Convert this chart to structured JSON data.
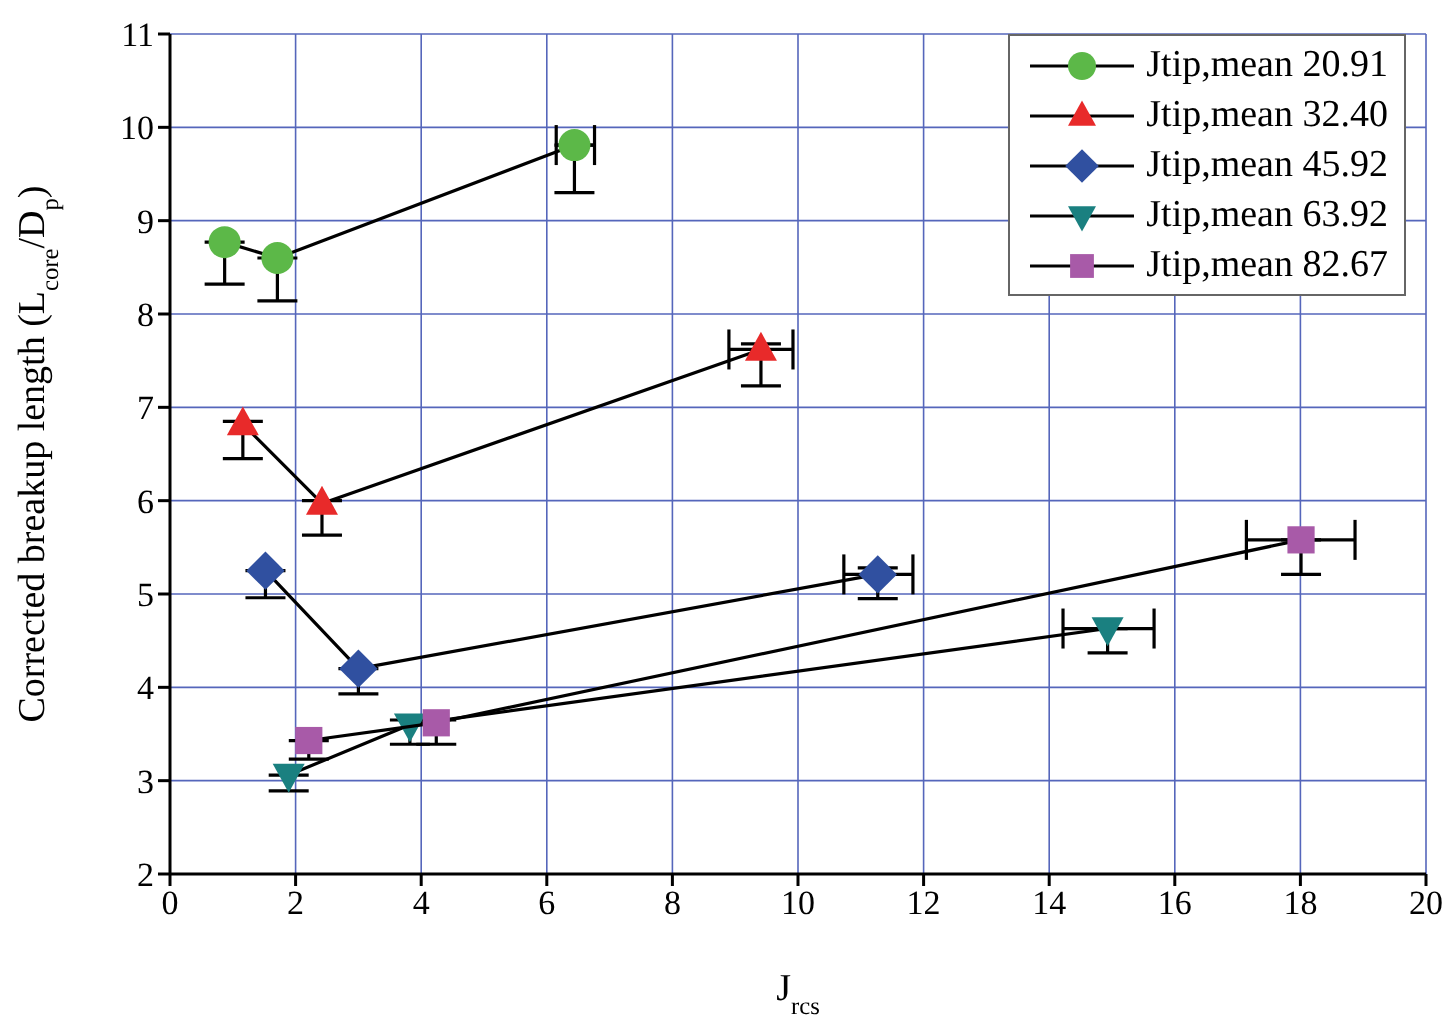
{
  "chart_data": {
    "type": "line",
    "xlabel": "J$_{rcs}$",
    "ylabel": "Corrected breakup length (L$_{core}$/D$_{p}$)",
    "xlim": [
      0,
      20
    ],
    "xticks": [
      0,
      2,
      4,
      6,
      8,
      10,
      12,
      14,
      16,
      18,
      20
    ],
    "ylim": [
      2,
      11
    ],
    "yticks": [
      2,
      3,
      4,
      5,
      6,
      7,
      8,
      9,
      10,
      11
    ],
    "grid": true,
    "legend": "top right",
    "line_style": "solid",
    "series": [
      {
        "name": "Jtip,mean 20.91",
        "color": "#5cb848",
        "marker": "circle",
        "x": [
          0.87,
          1.71,
          6.44
        ],
        "values": [
          8.77,
          8.6,
          9.81
        ],
        "errors": [
          [
            8.32,
            8.77
          ],
          [
            8.14,
            8.6
          ],
          [
            9.3,
            9.81
          ]
        ],
        "xerrors": [
          null,
          null,
          [
            6.15,
            6.76
          ]
        ]
      },
      {
        "name": "Jtip,mean 32.40",
        "color": "#e82a2a",
        "marker": "triangle",
        "x": [
          1.16,
          2.42,
          9.41
        ],
        "values": [
          6.82,
          5.97,
          7.62
        ],
        "errors": [
          [
            6.45,
            6.85
          ],
          [
            5.63,
            6.0
          ],
          [
            7.23,
            7.68
          ]
        ],
        "xerrors": [
          null,
          null,
          [
            8.9,
            9.92
          ]
        ]
      },
      {
        "name": "Jtip,mean 45.92",
        "color": "#3050a0",
        "marker": "diamond",
        "x": [
          1.52,
          3.0,
          11.27
        ],
        "values": [
          5.25,
          4.2,
          5.21
        ],
        "errors": [
          [
            4.96,
            5.25
          ],
          [
            3.93,
            4.2
          ],
          [
            4.95,
            5.28
          ]
        ],
        "xerrors": [
          null,
          null,
          [
            10.73,
            11.83
          ]
        ]
      },
      {
        "name": "Jtip,mean 63.92",
        "color": "#1a8080",
        "marker": "triangle-down",
        "x": [
          1.89,
          3.82,
          14.93
        ],
        "values": [
          3.06,
          3.6,
          4.63
        ],
        "errors": [
          [
            2.89,
            3.06
          ],
          [
            3.39,
            3.65
          ],
          [
            4.37,
            4.63
          ]
        ],
        "xerrors": [
          null,
          null,
          [
            14.22,
            15.67
          ]
        ]
      },
      {
        "name": "Jtip,mean 82.67",
        "color": "#a85aa8",
        "marker": "square",
        "x": [
          2.21,
          4.24,
          18.01
        ],
        "values": [
          3.43,
          3.62,
          5.58
        ],
        "errors": [
          [
            3.23,
            3.43
          ],
          [
            3.39,
            3.65
          ],
          [
            5.21,
            5.58
          ]
        ],
        "xerrors": [
          null,
          null,
          [
            17.14,
            18.87
          ]
        ]
      }
    ]
  }
}
